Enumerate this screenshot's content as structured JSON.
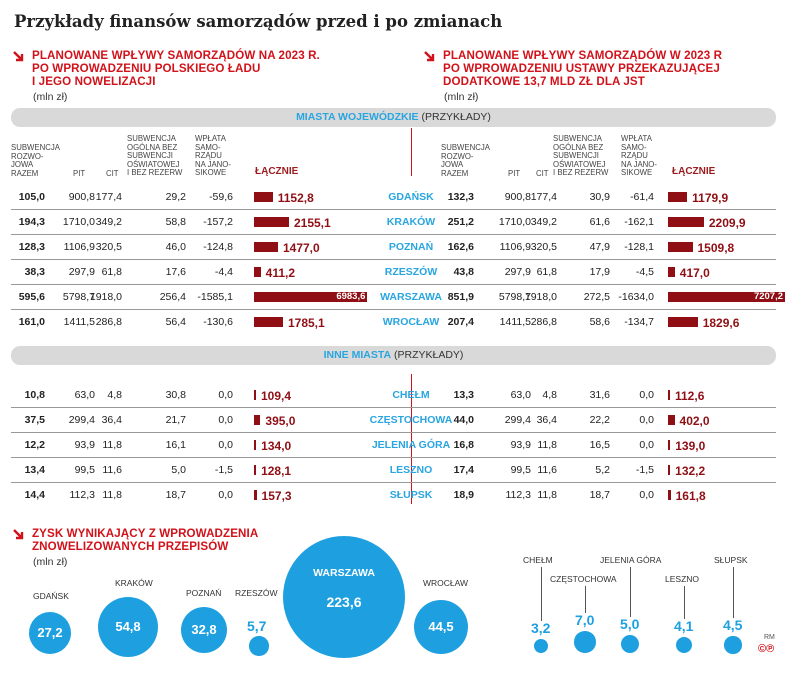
{
  "title": "Przykłady finansów samorządów przed i po zmianach",
  "left_header": {
    "lines": [
      "PLANOWANE WPŁYWY SAMORZĄDÓW NA 2023 R.",
      "PO WPROWADZENIU POLSKIEGO ŁADU",
      "I JEGO NOWELIZACJI"
    ],
    "unit": "(mln zł)"
  },
  "right_header": {
    "lines": [
      "PLANOWANE WPŁYWY SAMORZĄDÓW W 2023 R",
      "PO WPROWADZENIU USTAWY PRZEKAZUJĄCEJ",
      "DODATKOWE 13,7 MLD ZŁ DLA JST"
    ],
    "unit": "(mln zł)"
  },
  "band1": {
    "blue": "MIASTA WOJEWÓDZKIE",
    "grey": " (PRZYKŁADY)"
  },
  "band2": {
    "blue": "INNE MIASTA",
    "grey": "  (PRZYKŁADY)"
  },
  "columns": {
    "subwencja": [
      "SUBWENCJA",
      "ROZWO-",
      "JOWA",
      "RAZEM"
    ],
    "pit": "PIT",
    "cit": "CIT",
    "oswiatowa": [
      "SUBWENCJA",
      "OGÓLNA BEZ",
      "SUBWENCJI",
      "OŚWIATOWEJ",
      "I BEZ REZERW"
    ],
    "wplata": [
      "WPŁATA",
      "SAMO-",
      "RZĄDU",
      "NA JANO-",
      "SIKOWE"
    ],
    "lacznie": "ŁĄCZNIE"
  },
  "chart_data": [
    {
      "type": "table",
      "title": "MIASTA WOJEWÓDZKIE (PRZYKŁADY)",
      "columns": [
        "SUBWENCJA ROZWOJOWA RAZEM",
        "PIT",
        "CIT",
        "SUBWENCJA OGÓLNA BEZ SUBWENCJI OŚWIATOWEJ I BEZ REZERW",
        "WPŁATA SAMORZĄDU NA JANOSIKOWE",
        "ŁĄCZNIE"
      ],
      "rows": [
        {
          "city": "GDAŃSK",
          "before": [
            "105,0",
            "900,8",
            "177,4",
            "29,2",
            "-59,6",
            "1152,8"
          ],
          "after": [
            "132,3",
            "900,8",
            "177,4",
            "30,9",
            "-61,4",
            "1179,9"
          ],
          "total_before": 1152.8,
          "total_after": 1179.9
        },
        {
          "city": "KRAKÓW",
          "before": [
            "194,3",
            "1710,0",
            "349,2",
            "58,8",
            "-157,2",
            "2155,1"
          ],
          "after": [
            "251,2",
            "1710,0",
            "349,2",
            "61,6",
            "-162,1",
            "2209,9"
          ],
          "total_before": 2155.1,
          "total_after": 2209.9
        },
        {
          "city": "POZNAŃ",
          "before": [
            "128,3",
            "1106,9",
            "320,5",
            "46,0",
            "-124,8",
            "1477,0"
          ],
          "after": [
            "162,6",
            "1106,9",
            "320,5",
            "47,9",
            "-128,1",
            "1509,8"
          ],
          "total_before": 1477.0,
          "total_after": 1509.8
        },
        {
          "city": "RZESZÓW",
          "before": [
            "38,3",
            "297,9",
            "61,8",
            "17,6",
            "-4,4",
            "411,2"
          ],
          "after": [
            "43,8",
            "297,9",
            "61,8",
            "17,9",
            "-4,5",
            "417,0"
          ],
          "total_before": 411.2,
          "total_after": 417.0
        },
        {
          "city": "WARSZAWA",
          "before": [
            "595,6",
            "5798,7",
            "1918,0",
            "256,4",
            "-1585,1",
            "6983,6"
          ],
          "after": [
            "851,9",
            "5798,7",
            "1918,0",
            "272,5",
            "-1634,0",
            "7207,2"
          ],
          "total_before": 6983.6,
          "total_after": 7207.2
        },
        {
          "city": "WROCŁAW",
          "before": [
            "161,0",
            "1411,5",
            "286,8",
            "56,4",
            "-130,6",
            "1785,1"
          ],
          "after": [
            "207,4",
            "1411,5",
            "286,8",
            "58,6",
            "-134,7",
            "1829,6"
          ],
          "total_before": 1785.1,
          "total_after": 1829.6
        }
      ]
    },
    {
      "type": "table",
      "title": "INNE MIASTA (PRZYKŁADY)",
      "rows": [
        {
          "city": "CHEŁM",
          "before": [
            "10,8",
            "63,0",
            "4,8",
            "30,8",
            "0,0",
            "109,4"
          ],
          "after": [
            "13,3",
            "63,0",
            "4,8",
            "31,6",
            "0,0",
            "112,6"
          ],
          "total_before": 109.4,
          "total_after": 112.6
        },
        {
          "city": "CZĘSTOCHOWA",
          "before": [
            "37,5",
            "299,4",
            "36,4",
            "21,7",
            "0,0",
            "395,0"
          ],
          "after": [
            "44,0",
            "299,4",
            "36,4",
            "22,2",
            "0,0",
            "402,0"
          ],
          "total_before": 395.0,
          "total_after": 402.0
        },
        {
          "city": "JELENIA GÓRA",
          "before": [
            "12,2",
            "93,9",
            "11,8",
            "16,1",
            "0,0",
            "134,0"
          ],
          "after": [
            "16,8",
            "93,9",
            "11,8",
            "16,5",
            "0,0",
            "139,0"
          ],
          "total_before": 134.0,
          "total_after": 139.0
        },
        {
          "city": "LESZNO",
          "before": [
            "13,4",
            "99,5",
            "11,6",
            "5,0",
            "-1,5",
            "128,1"
          ],
          "after": [
            "17,4",
            "99,5",
            "11,6",
            "5,2",
            "-1,5",
            "132,2"
          ],
          "total_before": 128.1,
          "total_after": 132.2
        },
        {
          "city": "SŁUPSK",
          "before": [
            "14,4",
            "112,3",
            "11,8",
            "18,7",
            "0,0",
            "157,3"
          ],
          "after": [
            "18,9",
            "112,3",
            "11,8",
            "18,7",
            "0,0",
            "161,8"
          ],
          "total_before": 157.3,
          "total_after": 161.8
        }
      ]
    },
    {
      "type": "bubble",
      "title": "ZYSK WYNIKAJĄCY Z WPROWADZENIA ZNOWELIZOWANYCH PRZEPISÓW",
      "unit": "(mln zł)",
      "categories": [
        "GDAŃSK",
        "KRAKÓW",
        "POZNAŃ",
        "RZESZÓW",
        "WARSZAWA",
        "WROCŁAW",
        "CHEŁM",
        "CZĘSTOCHOWA",
        "JELENIA GÓRA",
        "LESZNO",
        "SŁUPSK"
      ],
      "labels": [
        "27,2",
        "54,8",
        "32,8",
        "5,7",
        "223,6",
        "44,5",
        "3,2",
        "7,0",
        "5,0",
        "4,1",
        "4,5"
      ],
      "values": [
        27.2,
        54.8,
        32.8,
        5.7,
        223.6,
        44.5,
        3.2,
        7.0,
        5.0,
        4.1,
        4.5
      ]
    }
  ],
  "gain_header": {
    "lines": [
      "ZYSK WYNIKAJĄCY Z WPROWADZENIA",
      "ZNOWELIZOWANYCH PRZEPISÓW"
    ],
    "unit": "(mln zł)"
  },
  "footer": {
    "rm": "RM",
    "logo": "©℗"
  },
  "colors": {
    "red": "#d1121a",
    "bar": "#8f0f14",
    "blue": "#29a5e0",
    "bubble": "#1ea0e0",
    "band": "#d9d9d9"
  }
}
